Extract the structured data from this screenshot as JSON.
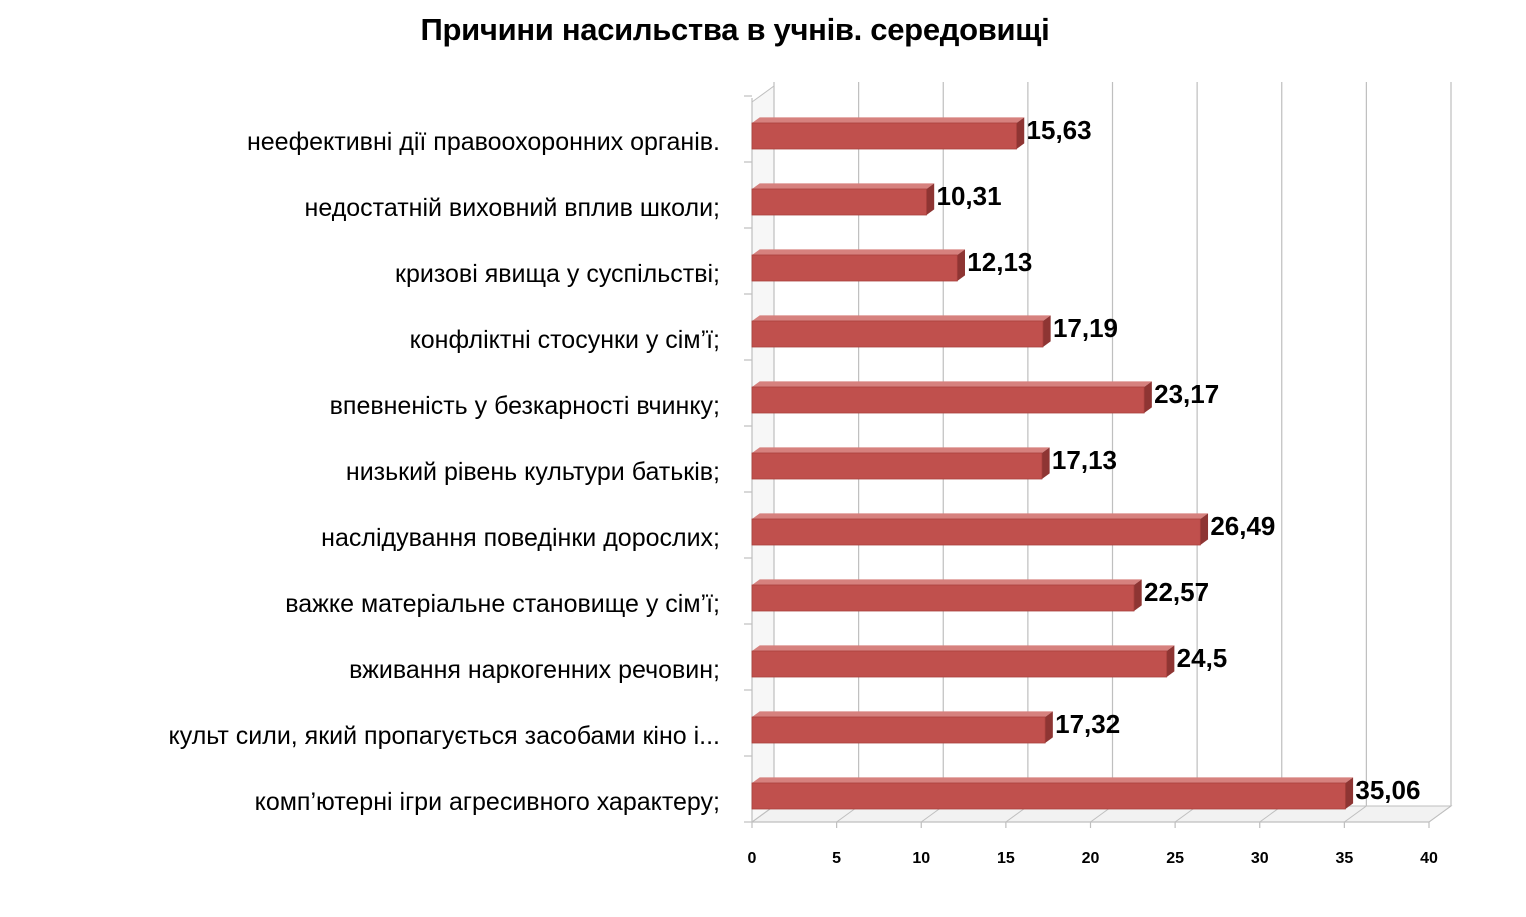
{
  "chart_data": {
    "type": "bar",
    "orientation": "horizontal",
    "title": "Причини насильства в учнів. середовищі",
    "categories": [
      "комп’ютерні ігри агресивного характеру;",
      "культ сили, який пропагується засобами кіно і...",
      "вживання наркогенних речовин;",
      "важке матеріальне становище у сім’ї;",
      "наслідування поведінки дорослих;",
      "низький рівень культури батьків;",
      "впевненість у безкарності вчинку;",
      "конфліктні стосунки у сім’ї;",
      "кризові явища у суспільстві;",
      "недостатній виховний вплив школи;",
      "неефективні дії правоохоронних органів."
    ],
    "values": [
      35.06,
      17.32,
      24.5,
      22.57,
      26.49,
      17.13,
      23.17,
      17.19,
      12.13,
      10.31,
      15.63
    ],
    "value_labels": [
      "35,06",
      "17,32",
      "24,5",
      "22,57",
      "26,49",
      "17,13",
      "23,17",
      "17,19",
      "12,13",
      "10,31",
      "15,63"
    ],
    "xlim": [
      0,
      40
    ],
    "xticks": [
      0,
      5,
      10,
      15,
      20,
      25,
      30,
      35,
      40
    ],
    "xtick_labels": [
      "0",
      "5",
      "10",
      "15",
      "20",
      "25",
      "30",
      "35",
      "40"
    ],
    "grid": true,
    "style": "3d",
    "bar_color": "#c0504d",
    "bar_top_color": "#d6817e",
    "bar_side_color": "#8e3533",
    "legend": "none"
  }
}
